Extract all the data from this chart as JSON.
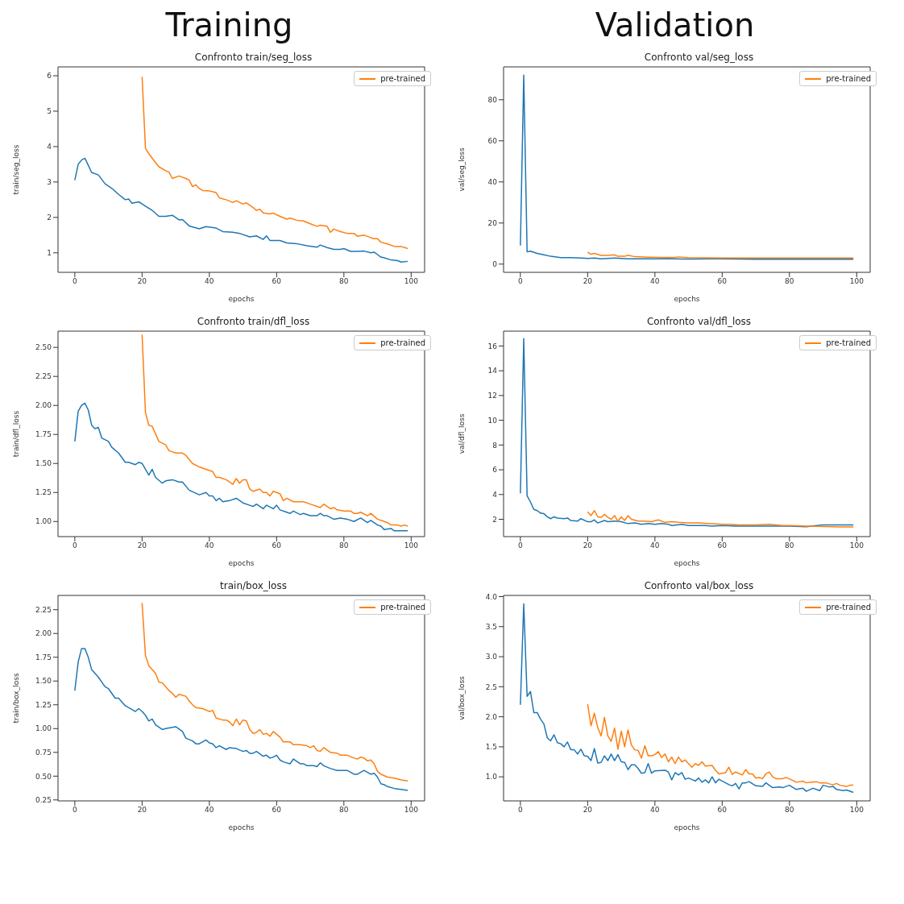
{
  "chart_data": [
    {
      "type": "line",
      "title": "Confronto train/seg_loss",
      "xlabel": "epochs",
      "ylabel": "train/seg_loss",
      "annotations": [
        "Training"
      ],
      "legend": "top right",
      "grid": false,
      "line_style": "solid",
      "marker": "none",
      "xlim": [
        -5,
        104
      ],
      "xticks": [
        0,
        20,
        40,
        60,
        80,
        100
      ],
      "ylim": [
        0.45,
        6.25
      ],
      "yticks": [
        1,
        2,
        3,
        4,
        5,
        6
      ],
      "series": [
        {
          "color": "#1f77b4",
          "x": [
            0,
            1,
            2,
            3,
            5,
            7,
            9,
            11,
            13,
            15,
            16,
            17,
            19,
            21,
            23,
            25,
            27,
            29,
            31,
            32,
            34,
            37,
            39,
            42,
            44,
            47,
            49,
            52,
            54,
            56,
            57,
            58,
            61,
            63,
            66,
            69,
            72,
            73,
            75,
            77,
            79,
            80,
            82,
            84,
            86,
            88,
            89,
            90,
            91,
            92,
            94,
            96,
            97,
            99
          ],
          "values": [
            3.05,
            3.5,
            3.62,
            3.67,
            3.27,
            3.2,
            2.95,
            2.82,
            2.65,
            2.5,
            2.52,
            2.4,
            2.44,
            2.32,
            2.2,
            2.03,
            2.03,
            2.06,
            1.93,
            1.94,
            1.76,
            1.68,
            1.74,
            1.7,
            1.6,
            1.58,
            1.55,
            1.45,
            1.48,
            1.38,
            1.48,
            1.35,
            1.35,
            1.28,
            1.26,
            1.2,
            1.16,
            1.22,
            1.15,
            1.1,
            1.1,
            1.12,
            1.04,
            1.04,
            1.05,
            1.0,
            1.02,
            0.95,
            0.88,
            0.86,
            0.8,
            0.78,
            0.74,
            0.76
          ]
        },
        {
          "name": "pre-trained",
          "color": "#ff7f0e",
          "x": [
            20,
            21,
            22,
            24,
            25,
            27,
            28,
            29,
            31,
            33,
            34,
            35,
            36,
            37,
            38,
            40,
            42,
            43,
            45,
            47,
            48,
            50,
            51,
            53,
            54,
            55,
            56,
            58,
            59,
            61,
            63,
            64,
            66,
            68,
            70,
            72,
            73,
            75,
            76,
            77,
            79,
            81,
            83,
            84,
            86,
            88,
            89,
            90,
            91,
            93,
            95,
            97,
            99
          ],
          "values": [
            5.97,
            3.95,
            3.8,
            3.55,
            3.43,
            3.32,
            3.28,
            3.1,
            3.17,
            3.1,
            3.05,
            2.87,
            2.92,
            2.82,
            2.76,
            2.75,
            2.7,
            2.55,
            2.5,
            2.42,
            2.47,
            2.38,
            2.41,
            2.28,
            2.2,
            2.23,
            2.13,
            2.1,
            2.12,
            2.03,
            1.95,
            1.98,
            1.92,
            1.9,
            1.82,
            1.75,
            1.78,
            1.75,
            1.58,
            1.67,
            1.6,
            1.55,
            1.55,
            1.47,
            1.5,
            1.43,
            1.4,
            1.4,
            1.3,
            1.25,
            1.18,
            1.18,
            1.12
          ]
        }
      ]
    },
    {
      "type": "line",
      "title": "Confronto val/seg_loss",
      "xlabel": "epochs",
      "ylabel": "val/seg_loss",
      "annotations": [
        "Validation"
      ],
      "legend": "top right",
      "grid": false,
      "line_style": "solid",
      "marker": "none",
      "xlim": [
        -5,
        104
      ],
      "xticks": [
        0,
        20,
        40,
        60,
        80,
        100
      ],
      "ylim": [
        -4,
        96
      ],
      "yticks": [
        0,
        20,
        40,
        60,
        80
      ],
      "series": [
        {
          "color": "#1f77b4",
          "x": [
            0,
            1,
            2,
            3,
            5,
            7,
            9,
            12,
            15,
            18,
            20,
            22,
            24,
            28,
            32,
            36,
            40,
            44,
            48,
            52,
            56,
            60,
            65,
            70,
            75,
            80,
            85,
            90,
            95,
            99
          ],
          "values": [
            9,
            92,
            6,
            6.3,
            5.2,
            4.5,
            3.8,
            3.2,
            3.2,
            3,
            2.8,
            3,
            2.6,
            3,
            2.6,
            2.6,
            2.6,
            2.7,
            2.5,
            2.5,
            2.6,
            2.6,
            2.5,
            2.4,
            2.4,
            2.4,
            2.4,
            2.4,
            2.4,
            2.4
          ]
        },
        {
          "name": "pre-trained",
          "color": "#ff7f0e",
          "x": [
            20,
            21,
            22,
            24,
            26,
            28,
            29,
            31,
            32,
            34,
            38,
            42,
            46,
            47,
            50,
            55,
            60,
            65,
            70,
            75,
            80,
            85,
            90,
            95,
            99
          ],
          "values": [
            5.8,
            4.8,
            5.2,
            4.2,
            4.2,
            4.5,
            3.8,
            3.8,
            4.3,
            3.6,
            3.4,
            3.3,
            3.3,
            3.5,
            3.2,
            3.1,
            3.0,
            3.0,
            3.0,
            3.0,
            3.0,
            3.0,
            3.0,
            3.0,
            3.0
          ]
        }
      ]
    },
    {
      "type": "line",
      "title": "Confronto train/dfl_loss",
      "xlabel": "epochs",
      "ylabel": "train/dfl_loss",
      "legend": "top right",
      "grid": false,
      "line_style": "solid",
      "marker": "none",
      "xlim": [
        -5,
        104
      ],
      "xticks": [
        0,
        20,
        40,
        60,
        80,
        100
      ],
      "ylim": [
        0.87,
        2.64
      ],
      "yticks": [
        {
          "value": 1,
          "label": "1.00"
        },
        {
          "value": 1.25,
          "label": "1.25"
        },
        {
          "value": 1.5,
          "label": "1.50"
        },
        {
          "value": 1.75,
          "label": "1.75"
        },
        {
          "value": 2,
          "label": "2.00"
        },
        {
          "value": 2.25,
          "label": "2.25"
        },
        {
          "value": 2.5,
          "label": "2.50"
        }
      ],
      "series": [
        {
          "color": "#1f77b4",
          "x": [
            0,
            1,
            2,
            3,
            4,
            5,
            6,
            7,
            8,
            10,
            11,
            13,
            15,
            16,
            18,
            19,
            20,
            22,
            23,
            24,
            26,
            27,
            29,
            31,
            32,
            34,
            37,
            39,
            40,
            41,
            42,
            43,
            44,
            46,
            48,
            50,
            52,
            53,
            54,
            56,
            57,
            59,
            60,
            61,
            63,
            64,
            65,
            67,
            68,
            70,
            72,
            73,
            74,
            75,
            77,
            79,
            81,
            83,
            85,
            87,
            88,
            90,
            91,
            92,
            94,
            95,
            97,
            99
          ],
          "values": [
            1.69,
            1.95,
            2.0,
            2.02,
            1.96,
            1.83,
            1.8,
            1.81,
            1.72,
            1.69,
            1.64,
            1.59,
            1.51,
            1.51,
            1.49,
            1.51,
            1.5,
            1.4,
            1.45,
            1.38,
            1.33,
            1.35,
            1.36,
            1.34,
            1.34,
            1.27,
            1.23,
            1.25,
            1.22,
            1.22,
            1.18,
            1.2,
            1.17,
            1.18,
            1.2,
            1.16,
            1.14,
            1.13,
            1.15,
            1.11,
            1.14,
            1.11,
            1.14,
            1.1,
            1.08,
            1.07,
            1.09,
            1.06,
            1.07,
            1.05,
            1.05,
            1.07,
            1.05,
            1.05,
            1.02,
            1.03,
            1.02,
            1.0,
            1.03,
            0.99,
            1.01,
            0.97,
            0.96,
            0.93,
            0.94,
            0.92,
            0.92,
            0.92
          ]
        },
        {
          "name": "pre-trained",
          "color": "#ff7f0e",
          "x": [
            20,
            21,
            22,
            23,
            25,
            27,
            28,
            30,
            32,
            33,
            35,
            37,
            39,
            41,
            42,
            43,
            45,
            47,
            48,
            49,
            50,
            51,
            52,
            53,
            55,
            56,
            57,
            58,
            59,
            61,
            62,
            63,
            65,
            68,
            70,
            72,
            73,
            74,
            76,
            77,
            78,
            80,
            82,
            83,
            84,
            85,
            87,
            88,
            90,
            92,
            93,
            94,
            96,
            97,
            98,
            99
          ],
          "values": [
            2.61,
            1.94,
            1.83,
            1.82,
            1.69,
            1.66,
            1.61,
            1.59,
            1.59,
            1.57,
            1.5,
            1.47,
            1.45,
            1.43,
            1.38,
            1.38,
            1.36,
            1.32,
            1.37,
            1.33,
            1.36,
            1.36,
            1.28,
            1.26,
            1.28,
            1.25,
            1.25,
            1.22,
            1.26,
            1.24,
            1.18,
            1.2,
            1.17,
            1.17,
            1.15,
            1.13,
            1.12,
            1.15,
            1.11,
            1.12,
            1.1,
            1.09,
            1.09,
            1.07,
            1.07,
            1.08,
            1.05,
            1.07,
            1.02,
            1.0,
            0.99,
            0.97,
            0.97,
            0.96,
            0.97,
            0.96
          ]
        }
      ]
    },
    {
      "type": "line",
      "title": "Confronto val/dfl_loss",
      "xlabel": "epochs",
      "ylabel": "val/dfl_loss",
      "legend": "top right",
      "grid": false,
      "line_style": "solid",
      "marker": "none",
      "xlim": [
        -5,
        104
      ],
      "xticks": [
        0,
        20,
        40,
        60,
        80,
        100
      ],
      "ylim": [
        0.6,
        17.2
      ],
      "yticks": [
        2,
        4,
        6,
        8,
        10,
        12,
        14,
        16
      ],
      "series": [
        {
          "color": "#1f77b4",
          "x": [
            0,
            1,
            2,
            3,
            4,
            5,
            6,
            7,
            8,
            9,
            10,
            11,
            13,
            14,
            15,
            17,
            18,
            20,
            21,
            22,
            23,
            25,
            26,
            28,
            30,
            32,
            34,
            36,
            38,
            40,
            42,
            44,
            45,
            48,
            50,
            55,
            57,
            60,
            64,
            70,
            75,
            80,
            85,
            90,
            95,
            99
          ],
          "values": [
            4.1,
            16.6,
            3.9,
            3.4,
            2.8,
            2.7,
            2.5,
            2.45,
            2.2,
            2.05,
            2.2,
            2.1,
            2.05,
            2.1,
            1.9,
            1.85,
            2.05,
            1.8,
            1.8,
            1.95,
            1.7,
            1.9,
            1.8,
            1.85,
            1.8,
            1.65,
            1.7,
            1.6,
            1.65,
            1.6,
            1.65,
            1.6,
            1.5,
            1.6,
            1.5,
            1.5,
            1.45,
            1.5,
            1.45,
            1.45,
            1.45,
            1.45,
            1.4,
            1.55,
            1.55,
            1.55
          ]
        },
        {
          "name": "pre-trained",
          "color": "#ff7f0e",
          "x": [
            20,
            21,
            22,
            23,
            24,
            25,
            26,
            27,
            28,
            29,
            30,
            31,
            32,
            33,
            35,
            37,
            39,
            41,
            43,
            45,
            47,
            50,
            53,
            56,
            60,
            62,
            65,
            70,
            74,
            78,
            80,
            85,
            90,
            95,
            99
          ],
          "values": [
            2.6,
            2.3,
            2.7,
            2.2,
            2.15,
            2.4,
            2.15,
            2.0,
            2.3,
            1.85,
            2.2,
            1.9,
            2.3,
            2.0,
            1.85,
            1.85,
            1.8,
            1.95,
            1.75,
            1.8,
            1.75,
            1.7,
            1.7,
            1.65,
            1.6,
            1.6,
            1.55,
            1.55,
            1.6,
            1.5,
            1.5,
            1.45,
            1.42,
            1.38,
            1.38
          ]
        }
      ]
    },
    {
      "type": "line",
      "title": "train/box_loss",
      "xlabel": "epochs",
      "ylabel": "train/box_loss",
      "legend": "top right",
      "grid": false,
      "line_style": "solid",
      "marker": "none",
      "xlim": [
        -5,
        104
      ],
      "xticks": [
        0,
        20,
        40,
        60,
        80,
        100
      ],
      "ylim": [
        0.24,
        2.4
      ],
      "yticks": [
        {
          "value": 0.25,
          "label": "0.25"
        },
        {
          "value": 0.5,
          "label": "0.50"
        },
        {
          "value": 0.75,
          "label": "0.75"
        },
        {
          "value": 1,
          "label": "1.00"
        },
        {
          "value": 1.25,
          "label": "1.25"
        },
        {
          "value": 1.5,
          "label": "1.50"
        },
        {
          "value": 1.75,
          "label": "1.75"
        },
        {
          "value": 2,
          "label": "2.00"
        },
        {
          "value": 2.25,
          "label": "2.25"
        }
      ],
      "series": [
        {
          "color": "#1f77b4",
          "x": [
            0,
            1,
            2,
            3,
            4,
            5,
            6,
            7,
            9,
            10,
            12,
            13,
            15,
            17,
            18,
            19,
            20,
            21,
            22,
            23,
            24,
            26,
            27,
            30,
            32,
            33,
            35,
            36,
            37,
            39,
            40,
            41,
            42,
            43,
            45,
            46,
            48,
            50,
            51,
            52,
            53,
            54,
            56,
            57,
            58,
            59,
            60,
            61,
            62,
            64,
            65,
            67,
            68,
            69,
            71,
            72,
            73,
            74,
            76,
            78,
            81,
            83,
            84,
            86,
            88,
            89,
            90,
            91,
            92,
            93,
            95,
            97,
            99
          ],
          "values": [
            1.4,
            1.7,
            1.84,
            1.84,
            1.75,
            1.62,
            1.58,
            1.54,
            1.44,
            1.42,
            1.32,
            1.32,
            1.24,
            1.2,
            1.18,
            1.21,
            1.18,
            1.14,
            1.08,
            1.1,
            1.04,
            0.99,
            1.0,
            1.02,
            0.97,
            0.9,
            0.87,
            0.84,
            0.84,
            0.88,
            0.85,
            0.84,
            0.8,
            0.82,
            0.78,
            0.8,
            0.79,
            0.76,
            0.77,
            0.74,
            0.74,
            0.76,
            0.71,
            0.72,
            0.69,
            0.7,
            0.72,
            0.67,
            0.65,
            0.63,
            0.68,
            0.63,
            0.63,
            0.61,
            0.61,
            0.6,
            0.64,
            0.61,
            0.58,
            0.56,
            0.56,
            0.52,
            0.52,
            0.56,
            0.52,
            0.53,
            0.49,
            0.42,
            0.41,
            0.39,
            0.37,
            0.36,
            0.35
          ]
        },
        {
          "name": "pre-trained",
          "color": "#ff7f0e",
          "x": [
            20,
            21,
            22,
            23,
            24,
            25,
            26,
            27,
            28,
            29,
            30,
            31,
            33,
            34,
            35,
            36,
            38,
            40,
            41,
            42,
            44,
            45,
            46,
            47,
            48,
            49,
            50,
            51,
            52,
            53,
            54,
            55,
            56,
            57,
            58,
            59,
            60,
            61,
            62,
            64,
            65,
            67,
            69,
            70,
            71,
            72,
            73,
            74,
            76,
            78,
            79,
            81,
            83,
            84,
            85,
            86,
            87,
            88,
            89,
            90,
            91,
            93,
            95,
            97,
            99
          ],
          "values": [
            2.32,
            1.77,
            1.66,
            1.62,
            1.58,
            1.49,
            1.48,
            1.44,
            1.4,
            1.37,
            1.33,
            1.36,
            1.34,
            1.29,
            1.25,
            1.22,
            1.21,
            1.18,
            1.19,
            1.11,
            1.09,
            1.09,
            1.07,
            1.03,
            1.1,
            1.04,
            1.09,
            1.08,
            0.99,
            0.95,
            0.96,
            0.99,
            0.94,
            0.95,
            0.92,
            0.97,
            0.94,
            0.91,
            0.86,
            0.86,
            0.83,
            0.83,
            0.82,
            0.8,
            0.82,
            0.77,
            0.76,
            0.8,
            0.75,
            0.74,
            0.72,
            0.72,
            0.69,
            0.68,
            0.7,
            0.69,
            0.66,
            0.67,
            0.63,
            0.55,
            0.52,
            0.49,
            0.48,
            0.46,
            0.45
          ]
        }
      ]
    },
    {
      "type": "line",
      "title": "Confronto val/box_loss",
      "xlabel": "epochs",
      "ylabel": "val/box_loss",
      "legend": "top right",
      "grid": false,
      "line_style": "solid",
      "marker": "none",
      "xlim": [
        -5,
        104
      ],
      "xticks": [
        0,
        20,
        40,
        60,
        80,
        100
      ],
      "ylim": [
        0.6,
        4.02
      ],
      "yticks": [
        {
          "value": 1,
          "label": "1.0"
        },
        {
          "value": 1.5,
          "label": "1.5"
        },
        {
          "value": 2,
          "label": "2.0"
        },
        {
          "value": 2.5,
          "label": "2.5"
        },
        {
          "value": 3,
          "label": "3.0"
        },
        {
          "value": 3.5,
          "label": "3.5"
        },
        {
          "value": 4,
          "label": "4.0"
        }
      ],
      "series": [
        {
          "color": "#1f77b4",
          "x": [
            0,
            1,
            2,
            3,
            4,
            5,
            6,
            7,
            8,
            9,
            10,
            11,
            12,
            13,
            14,
            15,
            16,
            17,
            18,
            19,
            20,
            21,
            22,
            23,
            24,
            25,
            26,
            27,
            28,
            29,
            30,
            31,
            32,
            33,
            34,
            35,
            36,
            37,
            38,
            39,
            40,
            43,
            44,
            45,
            46,
            47,
            48,
            49,
            50,
            52,
            53,
            54,
            55,
            56,
            57,
            58,
            59,
            61,
            62,
            63,
            64,
            65,
            66,
            67,
            68,
            70,
            72,
            73,
            75,
            77,
            78,
            80,
            82,
            84,
            85,
            87,
            89,
            90,
            92,
            93,
            94,
            96,
            97,
            99
          ],
          "values": [
            2.2,
            3.88,
            2.34,
            2.42,
            2.07,
            2.07,
            1.96,
            1.88,
            1.65,
            1.6,
            1.7,
            1.57,
            1.55,
            1.5,
            1.58,
            1.45,
            1.45,
            1.38,
            1.46,
            1.35,
            1.34,
            1.27,
            1.47,
            1.23,
            1.24,
            1.35,
            1.27,
            1.38,
            1.27,
            1.37,
            1.25,
            1.24,
            1.12,
            1.2,
            1.2,
            1.14,
            1.06,
            1.07,
            1.22,
            1.06,
            1.1,
            1.11,
            1.08,
            0.95,
            1.07,
            1.03,
            1.07,
            0.96,
            0.98,
            0.93,
            0.98,
            0.91,
            0.95,
            0.9,
            1.0,
            0.9,
            0.96,
            0.9,
            0.87,
            0.85,
            0.89,
            0.8,
            0.9,
            0.9,
            0.92,
            0.85,
            0.84,
            0.9,
            0.82,
            0.83,
            0.82,
            0.86,
            0.79,
            0.81,
            0.76,
            0.81,
            0.77,
            0.86,
            0.83,
            0.84,
            0.79,
            0.77,
            0.78,
            0.74
          ]
        },
        {
          "name": "pre-trained",
          "color": "#ff7f0e",
          "x": [
            20,
            21,
            22,
            23,
            24,
            25,
            26,
            27,
            28,
            29,
            30,
            31,
            32,
            33,
            34,
            35,
            36,
            37,
            38,
            39,
            40,
            41,
            42,
            43,
            44,
            45,
            46,
            47,
            48,
            49,
            51,
            52,
            53,
            54,
            55,
            57,
            58,
            59,
            61,
            62,
            63,
            64,
            66,
            67,
            68,
            69,
            70,
            71,
            72,
            73,
            74,
            75,
            76,
            78,
            79,
            81,
            82,
            84,
            85,
            86,
            88,
            89,
            91,
            92,
            93,
            94,
            95,
            97,
            98,
            99
          ],
          "values": [
            2.21,
            1.85,
            2.06,
            1.82,
            1.68,
            1.99,
            1.68,
            1.59,
            1.81,
            1.46,
            1.76,
            1.5,
            1.78,
            1.53,
            1.45,
            1.44,
            1.31,
            1.52,
            1.35,
            1.35,
            1.37,
            1.42,
            1.32,
            1.38,
            1.25,
            1.33,
            1.22,
            1.33,
            1.25,
            1.28,
            1.16,
            1.22,
            1.19,
            1.25,
            1.18,
            1.19,
            1.11,
            1.05,
            1.07,
            1.16,
            1.04,
            1.08,
            1.03,
            1.12,
            1.05,
            1.05,
            0.98,
            0.99,
            0.97,
            1.05,
            1.08,
            1.0,
            0.97,
            0.97,
            0.99,
            0.94,
            0.91,
            0.93,
            0.9,
            0.91,
            0.92,
            0.9,
            0.9,
            0.88,
            0.87,
            0.89,
            0.86,
            0.84,
            0.86,
            0.86
          ]
        }
      ]
    }
  ]
}
